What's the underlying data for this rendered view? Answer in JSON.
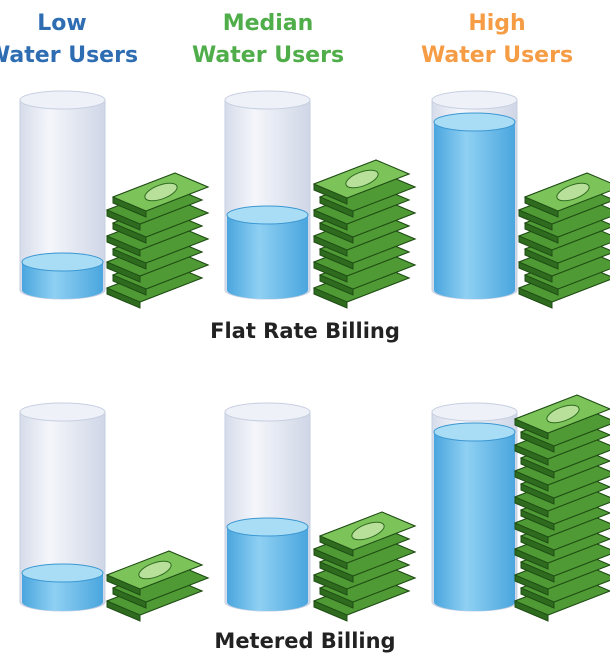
{
  "columns": [
    {
      "lines": [
        "Low",
        "Water Users"
      ],
      "color": "#2f6db3"
    },
    {
      "lines": [
        "Median",
        "Water Users"
      ],
      "color": "#4fae4a"
    },
    {
      "lines": [
        "High",
        "Water Users"
      ],
      "color": "#f59c45"
    }
  ],
  "sections": [
    {
      "caption": "Flat Rate Billing"
    },
    {
      "caption": "Metered Billing"
    }
  ]
}
